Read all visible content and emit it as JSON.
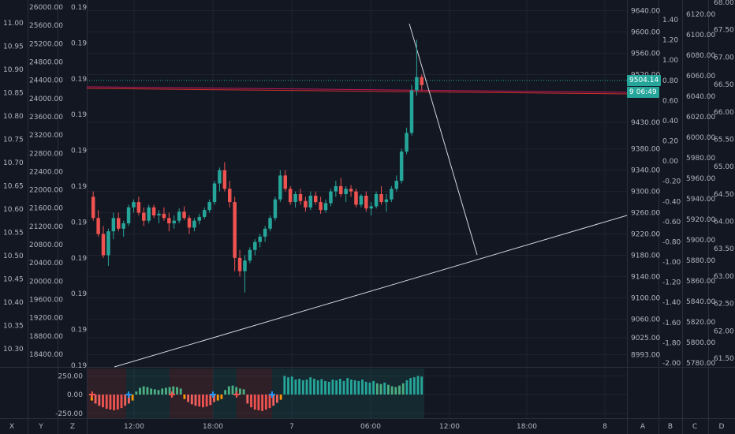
{
  "chart_data": {
    "type": "candlestick",
    "main": {
      "price_axis": {
        "ylim": [
          8970,
          9660
        ],
        "ticks": [
          8993.0,
          9025.0,
          9060.0,
          9100.0,
          9140.0,
          9180.0,
          9220.0,
          9260.0,
          9300.0,
          9340.0,
          9380.0,
          9430.0,
          9520.0,
          9560.0,
          9600.0,
          9640.0
        ],
        "tick_labels": [
          "8993.00",
          "9025.00",
          "9060.00",
          "9100.00",
          "9140.00",
          "9180.00",
          "9220.00",
          "9260.00",
          "9300.00",
          "9340.00",
          "9380.00",
          "9430.00",
          "9520.00",
          "9560.00",
          "9600.00",
          "9640.00"
        ]
      },
      "left_axis_1": {
        "labels": [
          "11.00",
          "10.95",
          "10.90",
          "10.85",
          "10.80",
          "10.75",
          "10.70",
          "10.65",
          "10.60",
          "10.55",
          "10.50",
          "10.45",
          "10.40",
          "10.35",
          "10.30"
        ]
      },
      "left_axis_2": {
        "labels": [
          "26000.00",
          "25600.00",
          "25200.00",
          "24800.00",
          "24400.00",
          "24000.00",
          "23600.00",
          "23200.00",
          "22800.00",
          "22400.00",
          "22000.00",
          "21600.00",
          "21200.00",
          "20800.00",
          "20400.00",
          "20000.00",
          "19600.00",
          "19200.00",
          "18800.00",
          "18400.00"
        ]
      },
      "left_axis_3": {
        "labels": [
          "0.19",
          "0.19",
          "0.19",
          "0.19",
          "0.19",
          "0.19",
          "0.19",
          "0.19",
          "0.19",
          "0.19",
          "0.19"
        ]
      },
      "right_axis_2": {
        "labels": [
          "1.40",
          "1.20",
          "1.00",
          "0.80",
          "0.60",
          "0.40",
          "0.20",
          "0.00",
          "-0.20",
          "-0.40",
          "-0.60",
          "-0.80",
          "-1.00",
          "-1.20",
          "-1.40",
          "-1.60",
          "-1.80",
          "-2.00"
        ]
      },
      "right_axis_3": {
        "labels": [
          "6120.00",
          "6100.00",
          "6080.00",
          "6060.00",
          "6040.00",
          "6020.00",
          "6000.00",
          "5980.00",
          "5960.00",
          "5940.00",
          "5920.00",
          "5900.00",
          "5880.00",
          "5860.00",
          "5840.00",
          "5820.00",
          "5800.00",
          "5780.00"
        ]
      },
      "right_axis_4": {
        "labels": [
          "68.00",
          "67.50",
          "67.00",
          "66.50",
          "66.00",
          "65.50",
          "65.00",
          "64.50",
          "64.00",
          "63.50",
          "63.00",
          "62.50",
          "62.00",
          "61.50"
        ]
      },
      "candles": [
        [
          9290,
          9300,
          9245,
          9250
        ],
        [
          9250,
          9265,
          9215,
          9220
        ],
        [
          9220,
          9235,
          9175,
          9180
        ],
        [
          9180,
          9230,
          9160,
          9225
        ],
        [
          9225,
          9260,
          9210,
          9250
        ],
        [
          9250,
          9260,
          9225,
          9230
        ],
        [
          9230,
          9245,
          9215,
          9240
        ],
        [
          9240,
          9275,
          9235,
          9270
        ],
        [
          9270,
          9285,
          9260,
          9280
        ],
        [
          9280,
          9290,
          9255,
          9260
        ],
        [
          9260,
          9270,
          9235,
          9245
        ],
        [
          9245,
          9275,
          9240,
          9270
        ],
        [
          9270,
          9275,
          9250,
          9255
        ],
        [
          9255,
          9265,
          9240,
          9258
        ],
        [
          9258,
          9270,
          9245,
          9250
        ],
        [
          9250,
          9260,
          9225,
          9240
        ],
        [
          9240,
          9255,
          9230,
          9245
        ],
        [
          9245,
          9268,
          9240,
          9262
        ],
        [
          9262,
          9272,
          9246,
          9250
        ],
        [
          9250,
          9255,
          9220,
          9232
        ],
        [
          9232,
          9250,
          9225,
          9245
        ],
        [
          9245,
          9258,
          9238,
          9252
        ],
        [
          9252,
          9270,
          9248,
          9265
        ],
        [
          9265,
          9285,
          9260,
          9280
        ],
        [
          9280,
          9320,
          9275,
          9315
        ],
        [
          9315,
          9345,
          9300,
          9340
        ],
        [
          9340,
          9355,
          9300,
          9305
        ],
        [
          9305,
          9320,
          9270,
          9280
        ],
        [
          9280,
          9290,
          9150,
          9175
        ],
        [
          9175,
          9190,
          9140,
          9150
        ],
        [
          9150,
          9180,
          9110,
          9170
        ],
        [
          9170,
          9195,
          9165,
          9190
        ],
        [
          9190,
          9210,
          9180,
          9205
        ],
        [
          9205,
          9220,
          9195,
          9215
        ],
        [
          9215,
          9235,
          9205,
          9230
        ],
        [
          9230,
          9255,
          9225,
          9250
        ],
        [
          9250,
          9290,
          9245,
          9285
        ],
        [
          9285,
          9340,
          9280,
          9330
        ],
        [
          9330,
          9340,
          9300,
          9305
        ],
        [
          9305,
          9310,
          9275,
          9280
        ],
        [
          9280,
          9300,
          9270,
          9295
        ],
        [
          9295,
          9305,
          9275,
          9282
        ],
        [
          9282,
          9290,
          9262,
          9270
        ],
        [
          9270,
          9300,
          9265,
          9292
        ],
        [
          9292,
          9300,
          9275,
          9280
        ],
        [
          9280,
          9290,
          9258,
          9265
        ],
        [
          9265,
          9285,
          9260,
          9278
        ],
        [
          9278,
          9305,
          9272,
          9300
        ],
        [
          9300,
          9320,
          9290,
          9310
        ],
        [
          9310,
          9325,
          9290,
          9295
        ],
        [
          9295,
          9310,
          9280,
          9305
        ],
        [
          9305,
          9312,
          9290,
          9300
        ],
        [
          9300,
          9305,
          9270,
          9275
        ],
        [
          9275,
          9295,
          9270,
          9292
        ],
        [
          9292,
          9300,
          9262,
          9268
        ],
        [
          9268,
          9280,
          9255,
          9272
        ],
        [
          9272,
          9300,
          9268,
          9295
        ],
        [
          9295,
          9310,
          9275,
          9280
        ],
        [
          9280,
          9295,
          9262,
          9285
        ],
        [
          9285,
          9310,
          9280,
          9305
        ],
        [
          9305,
          9330,
          9300,
          9320
        ],
        [
          9320,
          9380,
          9315,
          9375
        ],
        [
          9375,
          9420,
          9370,
          9410
        ],
        [
          9410,
          9500,
          9405,
          9490
        ],
        [
          9490,
          9585,
          9480,
          9515
        ],
        [
          9515,
          9520,
          9490,
          9500
        ]
      ],
      "last_price_label": "9504.14",
      "countdown_label": "06:49",
      "countdown_partial": "9"
    },
    "oscillator": {
      "ticks": [
        "250.00",
        "0.00",
        "-250.00"
      ],
      "values": [
        -80,
        -120,
        -150,
        -170,
        -190,
        -200,
        -210,
        -200,
        -180,
        -150,
        -120,
        -80,
        40,
        90,
        110,
        100,
        80,
        70,
        60,
        80,
        90,
        100,
        110,
        100,
        80,
        -60,
        -100,
        -130,
        -150,
        -160,
        -170,
        -160,
        -140,
        -100,
        -80,
        -60,
        60,
        110,
        120,
        100,
        80,
        70,
        -120,
        -170,
        -200,
        -210,
        -220,
        -200,
        -180,
        -150,
        -110,
        -70,
        250,
        230,
        240,
        200,
        210,
        190,
        200,
        230,
        210,
        190,
        205,
        180,
        170,
        200,
        190,
        210,
        180,
        220,
        200,
        190,
        180,
        200,
        170,
        160,
        180,
        150,
        140,
        160,
        130,
        110,
        100,
        120,
        150,
        190,
        220,
        230,
        250,
        240
      ]
    },
    "x_axis": {
      "labels": [
        "12:00",
        "18:00",
        "7",
        "06:00",
        "12:00",
        "18:00",
        "8"
      ]
    },
    "scale_buttons_left": [
      "X",
      "Y",
      "Z"
    ],
    "scale_buttons_right": [
      "A",
      "B",
      "C",
      "D"
    ]
  }
}
